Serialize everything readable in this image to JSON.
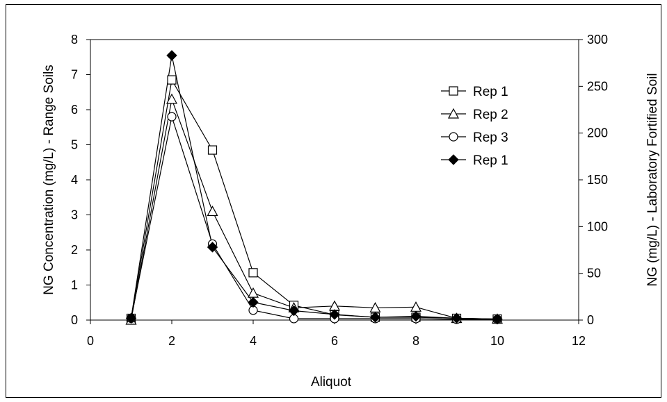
{
  "chart_data": {
    "type": "line",
    "title": "",
    "xlabel": "Aliquot",
    "ylabel": "NG Concentration (mg/L) - Range Soils",
    "y2label": "NG (mg/L) - Laboratory Fortified Soil",
    "xlim": [
      0,
      12
    ],
    "ylim": [
      0,
      8
    ],
    "y2lim": [
      0,
      300
    ],
    "xticks": [
      0,
      2,
      4,
      6,
      8,
      10,
      12
    ],
    "yticks": [
      0,
      1,
      2,
      3,
      4,
      5,
      6,
      7,
      8
    ],
    "y2ticks": [
      0,
      50,
      100,
      150,
      200,
      250,
      300
    ],
    "grid": false,
    "legend_position": "upper right inside plot",
    "series": [
      {
        "name": "Rep 1",
        "marker": "open-square",
        "axis": "left",
        "color": "#000000",
        "x": [
          1,
          2,
          3,
          4,
          5,
          6,
          7,
          8,
          9,
          10
        ],
        "y": [
          0.05,
          6.85,
          4.85,
          1.35,
          0.42,
          0.15,
          0.08,
          0.08,
          0.05,
          0.03
        ]
      },
      {
        "name": "Rep 2",
        "marker": "open-triangle",
        "axis": "left",
        "color": "#000000",
        "x": [
          1,
          2,
          3,
          4,
          5,
          6,
          7,
          8,
          9,
          10
        ],
        "y": [
          0.0,
          6.3,
          3.1,
          0.77,
          0.35,
          0.4,
          0.35,
          0.37,
          0.05,
          0.03
        ]
      },
      {
        "name": "Rep 3",
        "marker": "open-circle",
        "axis": "left",
        "color": "#000000",
        "x": [
          1,
          2,
          3,
          4,
          5,
          6,
          7,
          8,
          9,
          10
        ],
        "y": [
          0.05,
          5.8,
          2.17,
          0.28,
          0.04,
          0.04,
          0.04,
          0.04,
          0.02,
          0.02
        ]
      },
      {
        "name": "Rep 1",
        "marker": "filled-diamond",
        "axis": "right",
        "color": "#000000",
        "x": [
          1,
          2,
          3,
          4,
          5,
          6,
          7,
          8,
          9,
          10
        ],
        "y": [
          2,
          283,
          78,
          19,
          10,
          6,
          3,
          4,
          2,
          1
        ]
      }
    ]
  }
}
